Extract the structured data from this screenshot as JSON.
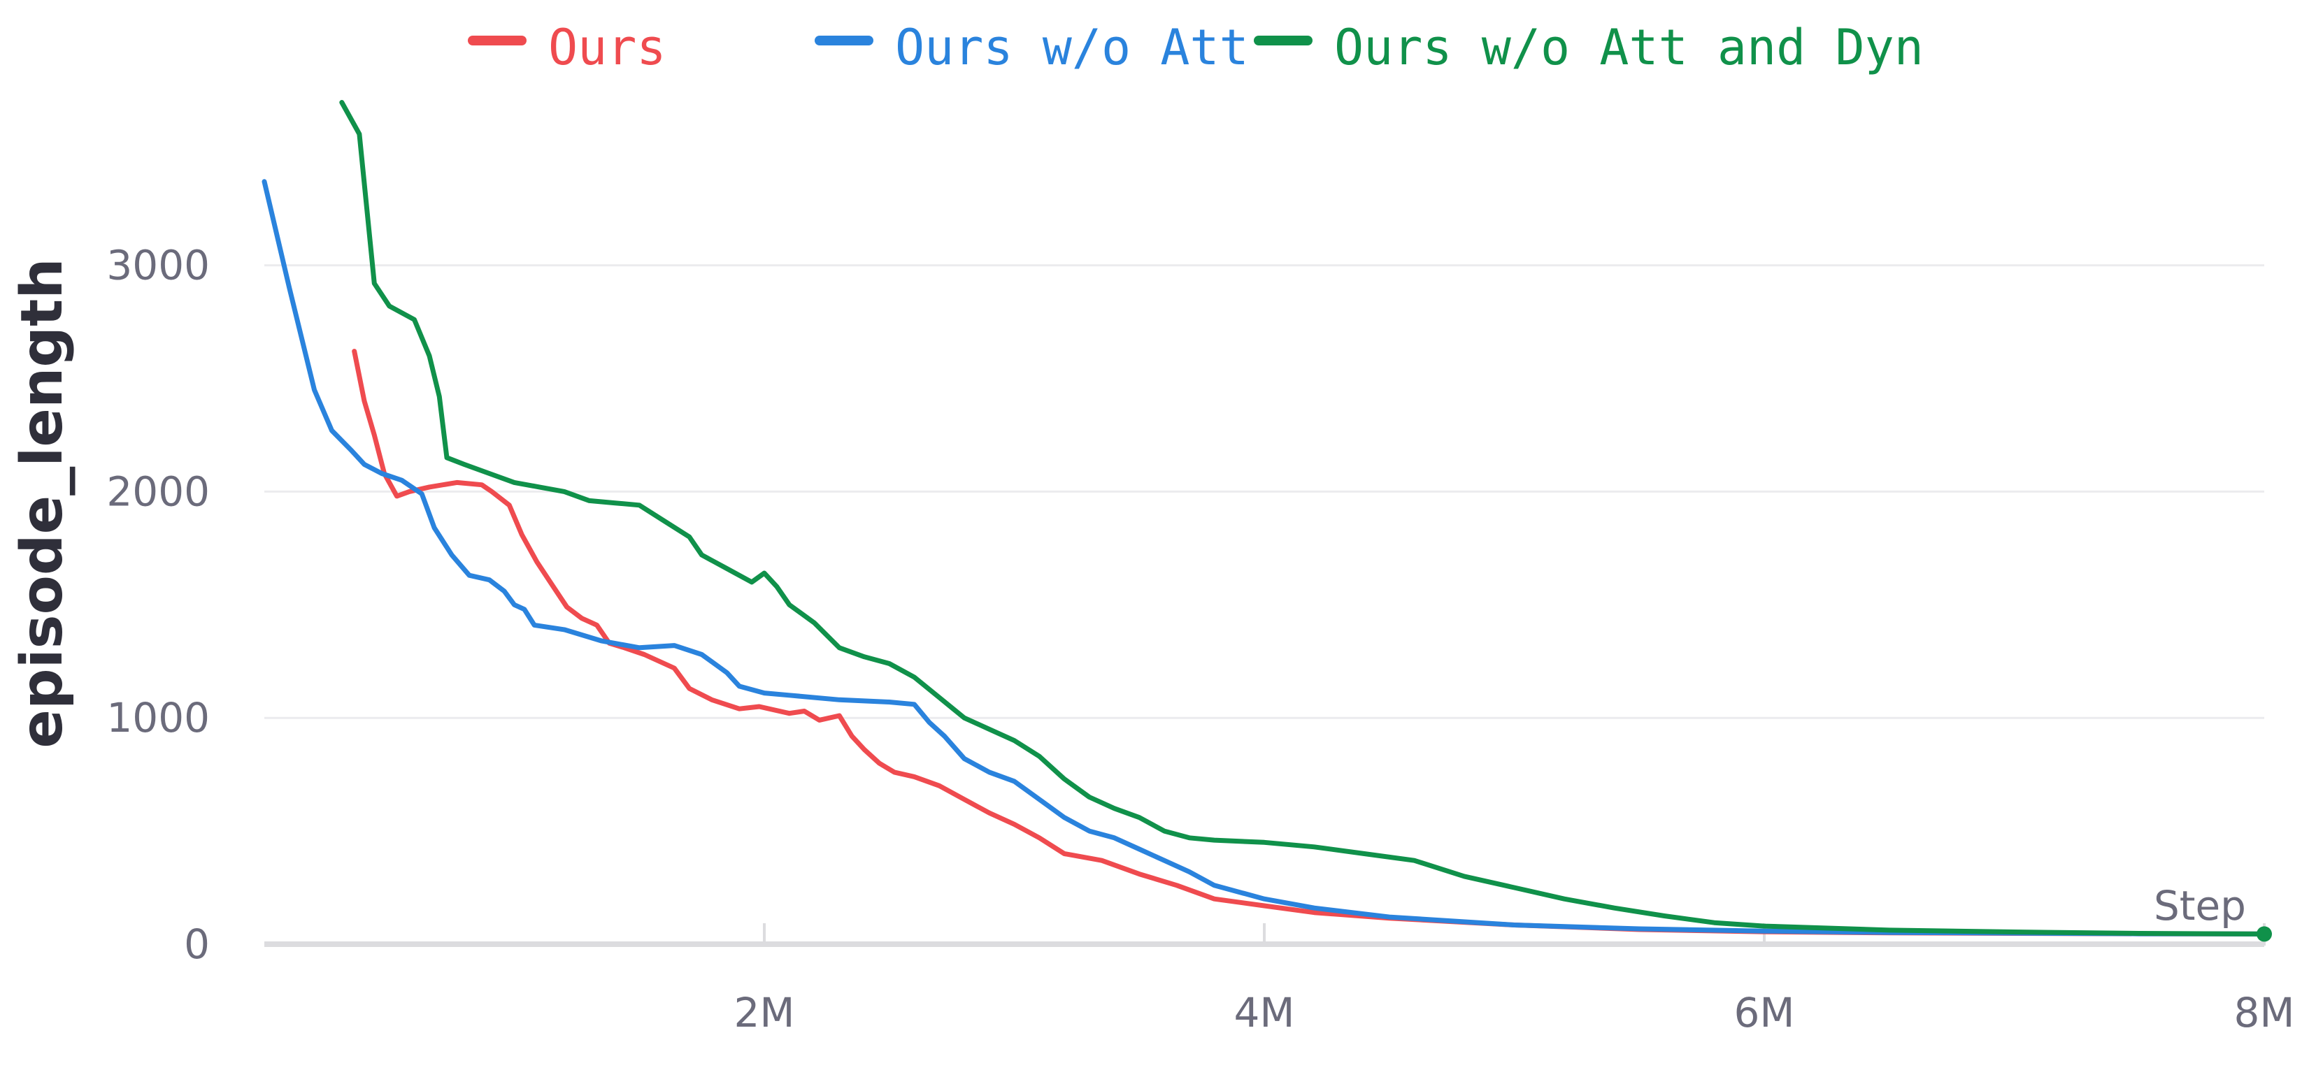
{
  "chart_data": {
    "type": "line",
    "ylabel": "episode_length",
    "x_axis_title": "Step",
    "xlim": [
      0,
      8000000
    ],
    "ylim": [
      0,
      3700
    ],
    "x_ticks": [
      {
        "value": 2000000,
        "label": "2M"
      },
      {
        "value": 4000000,
        "label": "4M"
      },
      {
        "value": 6000000,
        "label": "6M"
      },
      {
        "value": 8000000,
        "label": "8M"
      }
    ],
    "y_ticks": [
      {
        "value": 0,
        "label": "0"
      },
      {
        "value": 1000,
        "label": "1000"
      },
      {
        "value": 2000,
        "label": "2000"
      },
      {
        "value": 3000,
        "label": "3000"
      }
    ],
    "grid": true,
    "legend_position": "top",
    "series": [
      {
        "name": "Ours",
        "color": "#ef4b4f",
        "points": [
          [
            0.36,
            2620
          ],
          [
            0.4,
            2400
          ],
          [
            0.44,
            2250
          ],
          [
            0.48,
            2080
          ],
          [
            0.53,
            1980
          ],
          [
            0.58,
            2000
          ],
          [
            0.66,
            2020
          ],
          [
            0.77,
            2040
          ],
          [
            0.87,
            2030
          ],
          [
            0.91,
            2000
          ],
          [
            0.98,
            1940
          ],
          [
            1.03,
            1810
          ],
          [
            1.09,
            1690
          ],
          [
            1.15,
            1590
          ],
          [
            1.21,
            1490
          ],
          [
            1.27,
            1440
          ],
          [
            1.33,
            1410
          ],
          [
            1.38,
            1330
          ],
          [
            1.44,
            1310
          ],
          [
            1.52,
            1280
          ],
          [
            1.64,
            1220
          ],
          [
            1.7,
            1130
          ],
          [
            1.79,
            1080
          ],
          [
            1.9,
            1040
          ],
          [
            1.98,
            1050
          ],
          [
            2.1,
            1020
          ],
          [
            2.16,
            1030
          ],
          [
            2.22,
            990
          ],
          [
            2.3,
            1010
          ],
          [
            2.35,
            920
          ],
          [
            2.4,
            860
          ],
          [
            2.46,
            800
          ],
          [
            2.52,
            760
          ],
          [
            2.6,
            740
          ],
          [
            2.7,
            700
          ],
          [
            2.8,
            640
          ],
          [
            2.9,
            580
          ],
          [
            3.0,
            530
          ],
          [
            3.1,
            470
          ],
          [
            3.2,
            400
          ],
          [
            3.35,
            370
          ],
          [
            3.5,
            310
          ],
          [
            3.65,
            260
          ],
          [
            3.8,
            200
          ],
          [
            4.0,
            170
          ],
          [
            4.2,
            140
          ],
          [
            4.5,
            115
          ],
          [
            5.0,
            85
          ],
          [
            5.5,
            65
          ],
          [
            6.0,
            55
          ],
          [
            6.5,
            50
          ],
          [
            7.0,
            48
          ],
          [
            7.5,
            46
          ],
          [
            8.0,
            45
          ]
        ]
      },
      {
        "name": "Ours w/o Att",
        "color": "#2a83dd",
        "points": [
          [
            0.0,
            3370
          ],
          [
            0.1,
            2900
          ],
          [
            0.2,
            2450
          ],
          [
            0.27,
            2270
          ],
          [
            0.35,
            2180
          ],
          [
            0.4,
            2120
          ],
          [
            0.47,
            2080
          ],
          [
            0.55,
            2050
          ],
          [
            0.63,
            1990
          ],
          [
            0.68,
            1840
          ],
          [
            0.75,
            1720
          ],
          [
            0.82,
            1630
          ],
          [
            0.9,
            1610
          ],
          [
            0.96,
            1560
          ],
          [
            1.0,
            1500
          ],
          [
            1.04,
            1480
          ],
          [
            1.08,
            1410
          ],
          [
            1.2,
            1390
          ],
          [
            1.35,
            1340
          ],
          [
            1.5,
            1310
          ],
          [
            1.64,
            1320
          ],
          [
            1.75,
            1280
          ],
          [
            1.85,
            1200
          ],
          [
            1.9,
            1140
          ],
          [
            2.0,
            1110
          ],
          [
            2.1,
            1100
          ],
          [
            2.3,
            1080
          ],
          [
            2.5,
            1070
          ],
          [
            2.6,
            1060
          ],
          [
            2.66,
            980
          ],
          [
            2.72,
            920
          ],
          [
            2.8,
            820
          ],
          [
            2.9,
            760
          ],
          [
            3.0,
            720
          ],
          [
            3.1,
            640
          ],
          [
            3.2,
            560
          ],
          [
            3.3,
            500
          ],
          [
            3.4,
            470
          ],
          [
            3.5,
            420
          ],
          [
            3.6,
            370
          ],
          [
            3.7,
            320
          ],
          [
            3.8,
            260
          ],
          [
            4.0,
            200
          ],
          [
            4.2,
            160
          ],
          [
            4.5,
            120
          ],
          [
            5.0,
            85
          ],
          [
            5.5,
            68
          ],
          [
            6.0,
            58
          ],
          [
            6.5,
            52
          ],
          [
            7.0,
            49
          ],
          [
            7.5,
            46
          ],
          [
            8.0,
            45
          ]
        ]
      },
      {
        "name": "Ours w/o Att and Dyn",
        "color": "#10914a",
        "points": [
          [
            0.31,
            3720
          ],
          [
            0.38,
            3580
          ],
          [
            0.41,
            3250
          ],
          [
            0.44,
            2920
          ],
          [
            0.5,
            2820
          ],
          [
            0.6,
            2760
          ],
          [
            0.66,
            2600
          ],
          [
            0.7,
            2420
          ],
          [
            0.73,
            2150
          ],
          [
            0.8,
            2120
          ],
          [
            0.9,
            2080
          ],
          [
            1.0,
            2040
          ],
          [
            1.1,
            2020
          ],
          [
            1.2,
            2000
          ],
          [
            1.3,
            1960
          ],
          [
            1.4,
            1950
          ],
          [
            1.5,
            1940
          ],
          [
            1.6,
            1870
          ],
          [
            1.7,
            1800
          ],
          [
            1.75,
            1720
          ],
          [
            1.85,
            1660
          ],
          [
            1.95,
            1600
          ],
          [
            2.0,
            1640
          ],
          [
            2.05,
            1580
          ],
          [
            2.1,
            1500
          ],
          [
            2.2,
            1420
          ],
          [
            2.3,
            1310
          ],
          [
            2.4,
            1270
          ],
          [
            2.5,
            1240
          ],
          [
            2.6,
            1180
          ],
          [
            2.7,
            1090
          ],
          [
            2.8,
            1000
          ],
          [
            2.9,
            950
          ],
          [
            3.0,
            900
          ],
          [
            3.1,
            830
          ],
          [
            3.2,
            730
          ],
          [
            3.3,
            650
          ],
          [
            3.4,
            600
          ],
          [
            3.5,
            560
          ],
          [
            3.6,
            500
          ],
          [
            3.7,
            470
          ],
          [
            3.8,
            460
          ],
          [
            4.0,
            450
          ],
          [
            4.2,
            430
          ],
          [
            4.4,
            400
          ],
          [
            4.6,
            370
          ],
          [
            4.8,
            300
          ],
          [
            5.0,
            250
          ],
          [
            5.2,
            200
          ],
          [
            5.4,
            160
          ],
          [
            5.6,
            125
          ],
          [
            5.8,
            95
          ],
          [
            6.0,
            80
          ],
          [
            6.5,
            62
          ],
          [
            7.0,
            54
          ],
          [
            7.5,
            48
          ],
          [
            8.0,
            45
          ]
        ]
      }
    ]
  }
}
